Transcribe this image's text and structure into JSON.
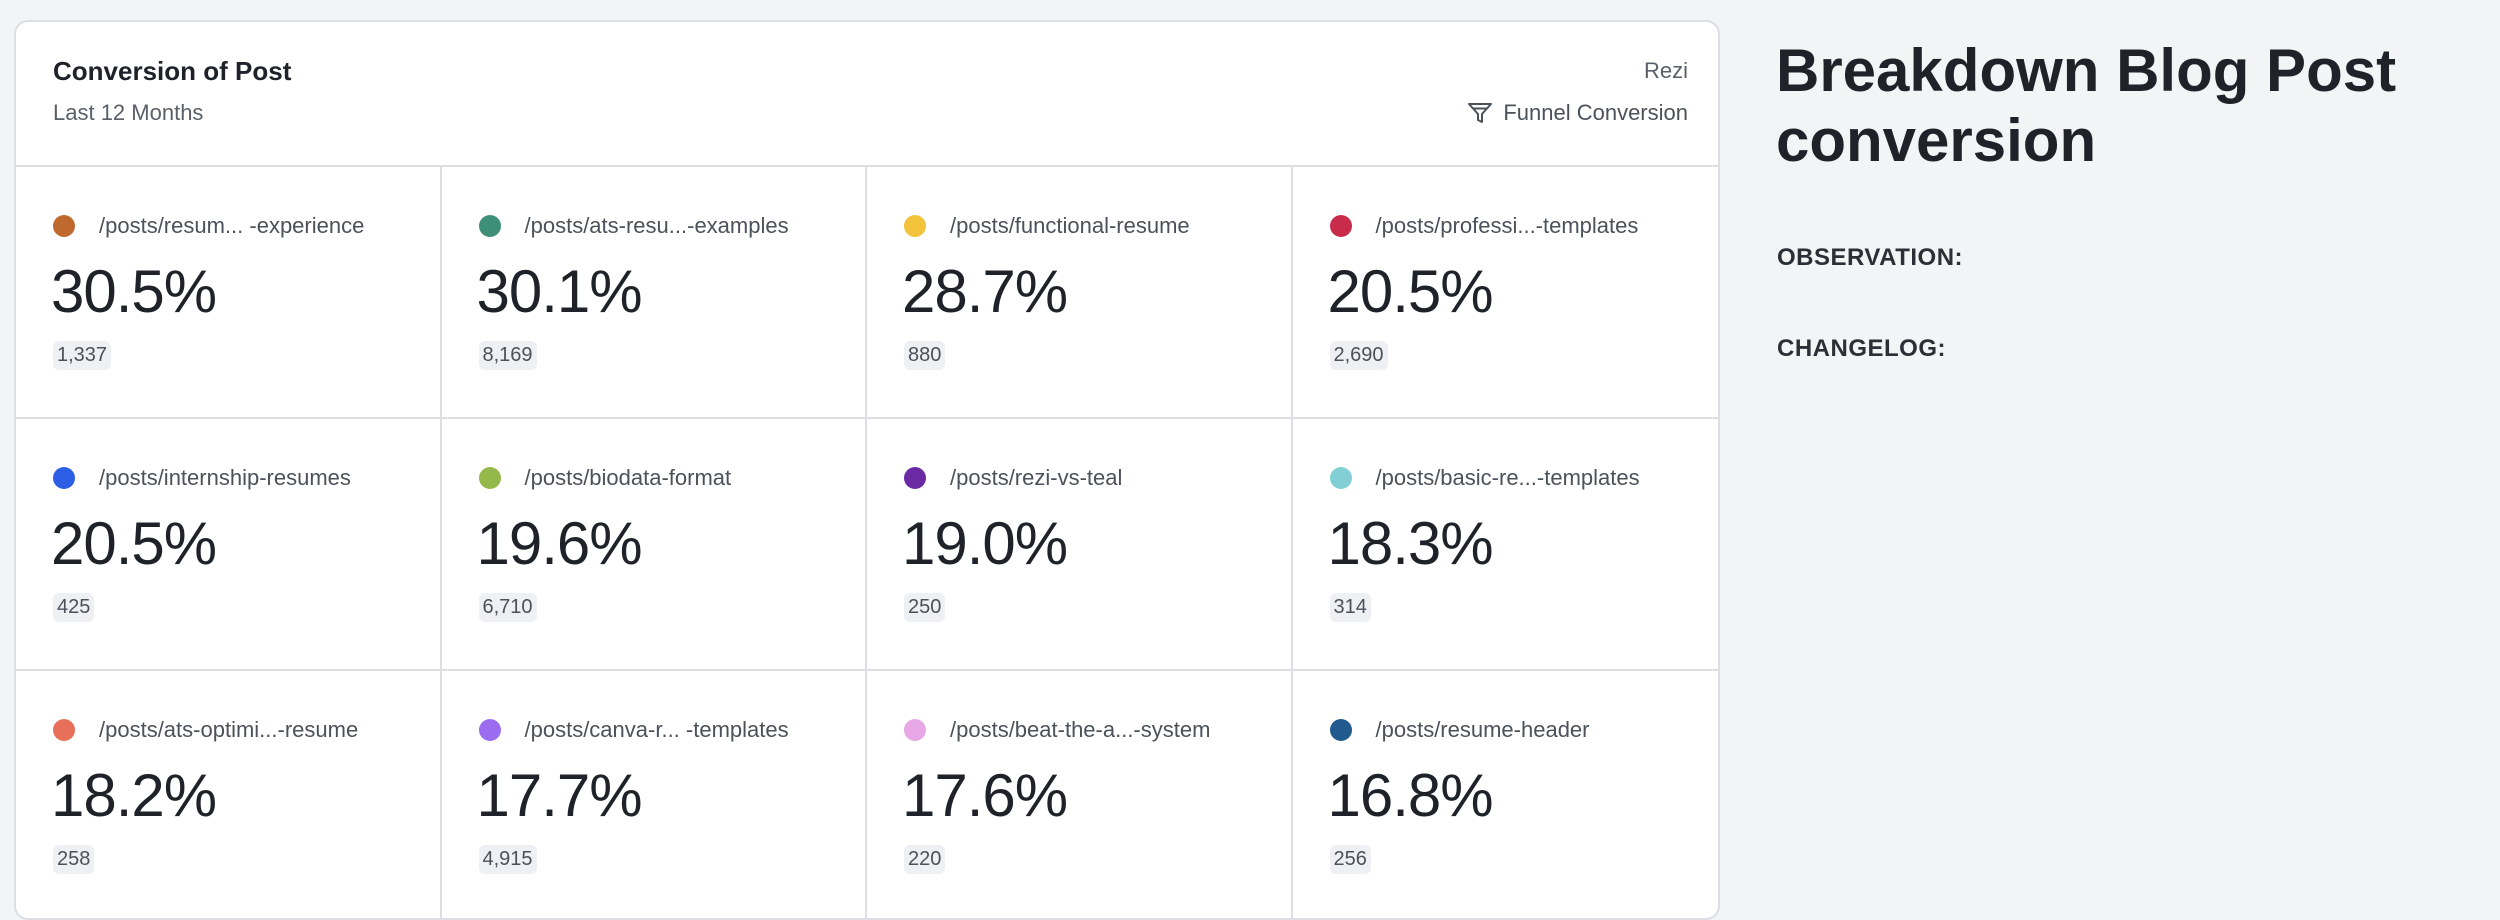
{
  "card": {
    "title": "Conversion of Post",
    "subtitle": "Last 12 Months",
    "org": "Rezi",
    "funnel_label": "Funnel Conversion"
  },
  "metrics": [
    {
      "path": "/posts/resum... -experience",
      "percent": "30.5%",
      "count": "1,337",
      "color": "#c0692f"
    },
    {
      "path": "/posts/ats-resu...-examples",
      "percent": "30.1%",
      "count": "8,169",
      "color": "#3e8f78"
    },
    {
      "path": "/posts/functional-resume",
      "percent": "28.7%",
      "count": "880",
      "color": "#f3c43b"
    },
    {
      "path": "/posts/professi...-templates",
      "percent": "20.5%",
      "count": "2,690",
      "color": "#c92c4b"
    },
    {
      "path": "/posts/internship-resumes",
      "percent": "20.5%",
      "count": "425",
      "color": "#2c5fe5"
    },
    {
      "path": "/posts/biodata-format",
      "percent": "19.6%",
      "count": "6,710",
      "color": "#95b84a"
    },
    {
      "path": "/posts/rezi-vs-teal",
      "percent": "19.0%",
      "count": "250",
      "color": "#6a2aa3"
    },
    {
      "path": "/posts/basic-re...-templates",
      "percent": "18.3%",
      "count": "314",
      "color": "#83cfd6"
    },
    {
      "path": "/posts/ats-optimi...-resume",
      "percent": "18.2%",
      "count": "258",
      "color": "#e8705a"
    },
    {
      "path": "/posts/canva-r... -templates",
      "percent": "17.7%",
      "count": "4,915",
      "color": "#9b6cf0"
    },
    {
      "path": "/posts/beat-the-a...-system",
      "percent": "17.6%",
      "count": "220",
      "color": "#e8a8e8"
    },
    {
      "path": "/posts/resume-header",
      "percent": "16.8%",
      "count": "256",
      "color": "#215a8d"
    }
  ],
  "notes": {
    "title": "Breakdown Blog Post conversion",
    "observation_label": "OBSERVATION:",
    "changelog_label": "CHANGELOG:"
  }
}
